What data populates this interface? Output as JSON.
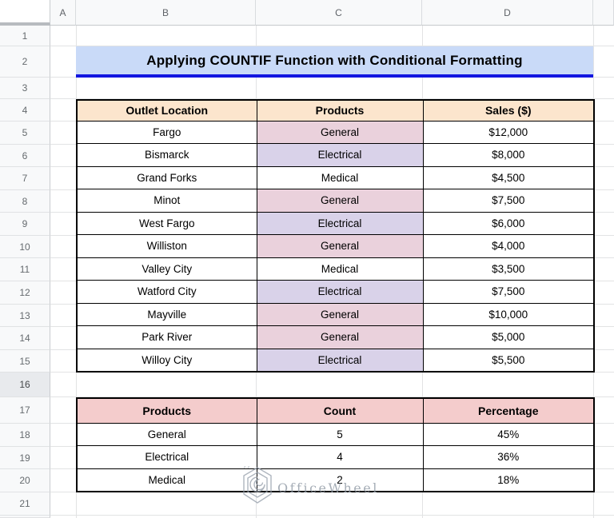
{
  "sheet": {
    "column_headers": [
      "A",
      "B",
      "C",
      "D"
    ],
    "row_numbers": [
      "1",
      "2",
      "3",
      "4",
      "5",
      "6",
      "7",
      "8",
      "9",
      "10",
      "11",
      "12",
      "13",
      "14",
      "15",
      "16",
      "17",
      "18",
      "19",
      "20",
      "21"
    ],
    "active_row_number": "16",
    "title": "Applying COUNTIF Function with Conditional Formatting",
    "colors": {
      "title_bg": "#c9daf8",
      "title_underline": "#1216e0",
      "table1_header_bg": "#fce5cd",
      "table2_header_bg": "#f4cccc",
      "product_highlight": {
        "General": "#ead1dc",
        "Electrical": "#d9d2e9",
        "Medical": "#ffffff"
      }
    },
    "table1": {
      "headers": [
        "Outlet Location",
        "Products",
        "Sales ($)"
      ],
      "rows": [
        {
          "location": "Fargo",
          "product": "General",
          "sales": "$12,000"
        },
        {
          "location": "Bismarck",
          "product": "Electrical",
          "sales": "$8,000"
        },
        {
          "location": "Grand Forks",
          "product": "Medical",
          "sales": "$4,500"
        },
        {
          "location": "Minot",
          "product": "General",
          "sales": "$7,500"
        },
        {
          "location": "West Fargo",
          "product": "Electrical",
          "sales": "$6,000"
        },
        {
          "location": "Williston",
          "product": "General",
          "sales": "$4,000"
        },
        {
          "location": "Valley City",
          "product": "Medical",
          "sales": "$3,500"
        },
        {
          "location": "Watford City",
          "product": "Electrical",
          "sales": "$7,500"
        },
        {
          "location": "Mayville",
          "product": "General",
          "sales": "$10,000"
        },
        {
          "location": "Park River",
          "product": "General",
          "sales": "$5,000"
        },
        {
          "location": "Willoy City",
          "product": "Electrical",
          "sales": "$5,500"
        }
      ]
    },
    "table2": {
      "headers": [
        "Products",
        "Count",
        "Percentage"
      ],
      "rows": [
        {
          "product": "General",
          "count": "5",
          "percentage": "45%"
        },
        {
          "product": "Electrical",
          "count": "4",
          "percentage": "36%"
        },
        {
          "product": "Medical",
          "count": "2",
          "percentage": "18%"
        }
      ]
    },
    "watermark": {
      "text": "OfficeWheel"
    }
  }
}
